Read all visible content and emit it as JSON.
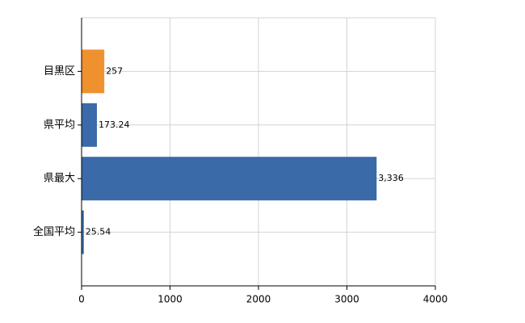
{
  "chart_data": {
    "type": "hbar",
    "categories": [
      "目黒区",
      "県平均",
      "県最大",
      "全国平均"
    ],
    "values": [
      257,
      173.24,
      3336,
      25.54
    ],
    "value_labels": [
      "257",
      "173.24",
      "3,336",
      "25.54"
    ],
    "colors": [
      "#f0912f",
      "#3a6aa8",
      "#3a6aa8",
      "#3a6aa8"
    ],
    "xlim": [
      0,
      4000
    ],
    "xticks": [
      0,
      1000,
      2000,
      3000,
      4000
    ],
    "grid": true
  }
}
